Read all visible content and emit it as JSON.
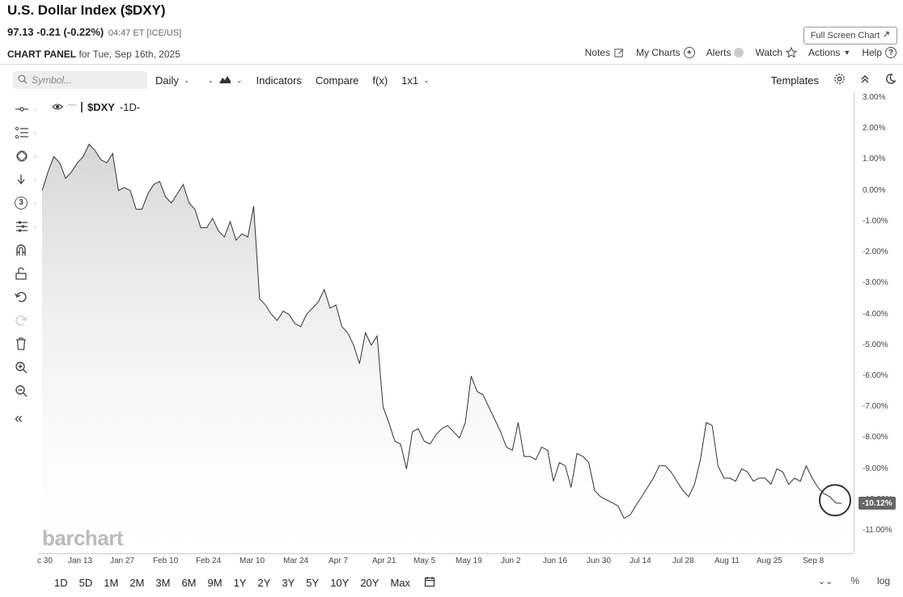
{
  "header": {
    "title": "U.S. Dollar Index ($DXY)",
    "price": "97.13",
    "change": "-0.21 (-0.22%)",
    "time": "04:47 ET [ICE/US]",
    "full_screen_label": "Full Screen Chart",
    "panel_label": "CHART PANEL",
    "panel_date": "for Tue, Sep 16th, 2025"
  },
  "top_links": {
    "notes": "Notes",
    "my_charts": "My Charts",
    "alerts": "Alerts",
    "watch": "Watch",
    "actions": "Actions",
    "help": "Help"
  },
  "toolbar": {
    "search_placeholder": "Symbol...",
    "interval": "Daily",
    "indicators": "Indicators",
    "compare": "Compare",
    "fx": "f(x)",
    "layout": "1x1",
    "templates": "Templates"
  },
  "legend": {
    "symbol": "$DXY",
    "interval": "-1D-"
  },
  "watermark": "barchart",
  "last_value_badge": "-10.12%",
  "range_buttons": [
    "1D",
    "5D",
    "1M",
    "2M",
    "3M",
    "6M",
    "9M",
    "1Y",
    "2Y",
    "3Y",
    "5Y",
    "10Y",
    "20Y",
    "Max"
  ],
  "bottom_right": {
    "percent": "%",
    "log": "log"
  },
  "colors": {
    "line": "#333333",
    "area_fill": "#dddddd",
    "highlight_ring": "#333333"
  },
  "chart_data": {
    "type": "area",
    "y_unit": "%",
    "ylim": [
      -11.5,
      3.0
    ],
    "y_ticks": [
      "3.00%",
      "2.00%",
      "1.00%",
      "0.00%",
      "-1.00%",
      "-2.00%",
      "-3.00%",
      "-4.00%",
      "-5.00%",
      "-6.00%",
      "-7.00%",
      "-8.00%",
      "-9.00%",
      "-10.00%",
      "-11.00%"
    ],
    "x_ticks": [
      "c 30",
      "Jan 13",
      "Jan 27",
      "Feb 10",
      "Feb 24",
      "Mar 10",
      "Mar 24",
      "Apr 7",
      "Apr 21",
      "May 5",
      "May 19",
      "Jun 2",
      "Jun 16",
      "Jun 30",
      "Jul 14",
      "Jul 28",
      "Aug 11",
      "Aug 25",
      "Sep 8"
    ],
    "series": [
      {
        "values": [
          0.0,
          0.6,
          1.1,
          0.9,
          0.4,
          0.6,
          0.9,
          1.1,
          1.5,
          1.3,
          1.0,
          0.9,
          1.2,
          0.0,
          0.1,
          0.0,
          -0.6,
          -0.6,
          -0.1,
          0.2,
          0.3,
          -0.2,
          -0.4,
          -0.1,
          0.2,
          -0.4,
          -0.6,
          -1.2,
          -1.2,
          -0.9,
          -1.3,
          -1.5,
          -1.0,
          -1.6,
          -1.4,
          -1.5,
          -0.5,
          -3.5,
          -3.7,
          -4.0,
          -4.2,
          -3.9,
          -4.0,
          -4.3,
          -4.4,
          -4.0,
          -3.8,
          -3.6,
          -3.2,
          -3.8,
          -3.7,
          -4.4,
          -4.6,
          -5.0,
          -5.6,
          -4.6,
          -5.0,
          -4.7,
          -7.0,
          -7.5,
          -8.1,
          -8.2,
          -9.0,
          -7.8,
          -7.7,
          -8.1,
          -8.2,
          -7.9,
          -7.7,
          -7.6,
          -7.8,
          -8.0,
          -7.5,
          -6.0,
          -6.5,
          -6.6,
          -7.0,
          -7.4,
          -7.8,
          -8.3,
          -8.4,
          -7.5,
          -8.6,
          -8.6,
          -8.7,
          -8.3,
          -8.4,
          -9.4,
          -8.8,
          -8.9,
          -9.6,
          -8.5,
          -8.6,
          -8.8,
          -9.7,
          -9.9,
          -10.0,
          -10.1,
          -10.2,
          -10.6,
          -10.5,
          -10.2,
          -9.9,
          -9.6,
          -9.3,
          -8.9,
          -8.9,
          -9.1,
          -9.4,
          -9.7,
          -9.9,
          -9.5,
          -8.7,
          -7.5,
          -7.6,
          -8.9,
          -9.3,
          -9.3,
          -9.4,
          -9.0,
          -9.1,
          -9.4,
          -9.3,
          -9.3,
          -9.5,
          -9.0,
          -9.1,
          -9.5,
          -9.3,
          -9.4,
          -8.9,
          -9.3,
          -9.6,
          -9.8,
          -9.9,
          -10.1,
          -10.12
        ]
      }
    ],
    "grid": false,
    "highlight": "last value circled"
  }
}
